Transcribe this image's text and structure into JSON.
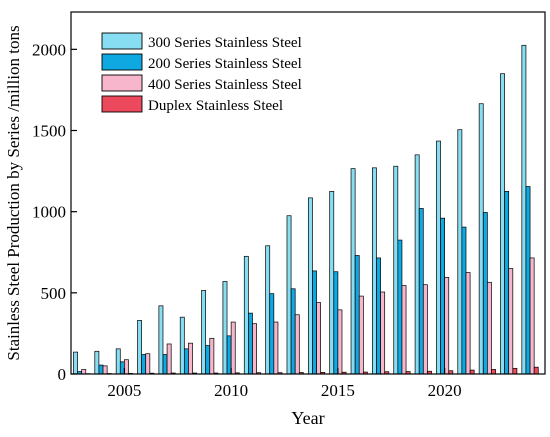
{
  "chart_data": {
    "type": "bar",
    "title": "",
    "xlabel": "Year",
    "ylabel": "Stainless Steel Production by Series /million tons",
    "x": [
      2003,
      2004,
      2005,
      2006,
      2007,
      2008,
      2009,
      2010,
      2011,
      2012,
      2013,
      2014,
      2015,
      2016,
      2017,
      2018,
      2019,
      2020,
      2021,
      2022,
      2023,
      2024
    ],
    "xlim": [
      2002.5,
      2024.7
    ],
    "ylim": [
      0,
      2230
    ],
    "x_ticks": [
      2005,
      2010,
      2015,
      2020
    ],
    "x_tick_labels": [
      "2005",
      "2010",
      "2015",
      "2020"
    ],
    "y_ticks": [
      0,
      500,
      1000,
      1500,
      2000
    ],
    "y_tick_labels": [
      "0",
      "500",
      "1000",
      "1500",
      "2000"
    ],
    "grid": false,
    "legend_position": "top-left",
    "series": [
      {
        "name": "300 Series Stainless Steel",
        "color": "#87DEF2",
        "values": [
          135,
          140,
          155,
          330,
          420,
          350,
          515,
          570,
          725,
          790,
          975,
          1085,
          1125,
          1265,
          1270,
          1280,
          1350,
          1435,
          1505,
          1665,
          1850,
          2025
        ]
      },
      {
        "name": "200 Series Stainless Steel",
        "color": "#0FA8E0",
        "values": [
          15,
          55,
          75,
          120,
          120,
          155,
          175,
          235,
          375,
          495,
          525,
          635,
          630,
          730,
          715,
          825,
          1020,
          960,
          905,
          995,
          1125,
          1155
        ]
      },
      {
        "name": "400 Series Stainless Steel",
        "color": "#F7B6CC",
        "values": [
          28,
          50,
          88,
          125,
          185,
          190,
          220,
          320,
          310,
          320,
          365,
          440,
          395,
          480,
          505,
          545,
          550,
          595,
          625,
          565,
          650,
          715
        ]
      },
      {
        "name": "Duplex Stainless Steel",
        "color": "#EC4A5C",
        "values": [
          2,
          3,
          4,
          5,
          6,
          6,
          6,
          7,
          8,
          8,
          9,
          10,
          11,
          12,
          14,
          15,
          17,
          20,
          24,
          28,
          35,
          42
        ]
      }
    ]
  }
}
